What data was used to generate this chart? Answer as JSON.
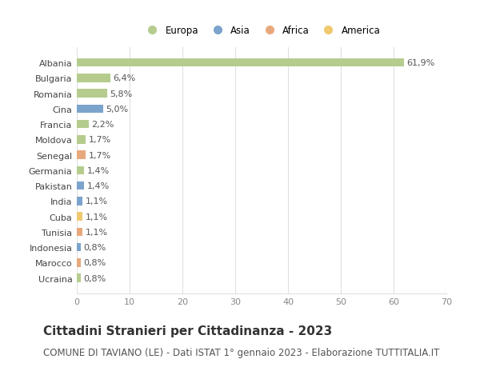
{
  "categories": [
    "Albania",
    "Bulgaria",
    "Romania",
    "Cina",
    "Francia",
    "Moldova",
    "Senegal",
    "Germania",
    "Pakistan",
    "India",
    "Cuba",
    "Tunisia",
    "Indonesia",
    "Marocco",
    "Ucraina"
  ],
  "values": [
    61.9,
    6.4,
    5.8,
    5.0,
    2.2,
    1.7,
    1.7,
    1.4,
    1.4,
    1.1,
    1.1,
    1.1,
    0.8,
    0.8,
    0.8
  ],
  "labels": [
    "61,9%",
    "6,4%",
    "5,8%",
    "5,0%",
    "2,2%",
    "1,7%",
    "1,7%",
    "1,4%",
    "1,4%",
    "1,1%",
    "1,1%",
    "1,1%",
    "0,8%",
    "0,8%",
    "0,8%"
  ],
  "continents": [
    "Europa",
    "Europa",
    "Europa",
    "Asia",
    "Europa",
    "Europa",
    "Africa",
    "Europa",
    "Asia",
    "Asia",
    "America",
    "Africa",
    "Asia",
    "Africa",
    "Europa"
  ],
  "continent_colors": {
    "Europa": "#b5cc8e",
    "Asia": "#7ba3cc",
    "Africa": "#e8a87c",
    "America": "#f0c96e"
  },
  "legend_order": [
    "Europa",
    "Asia",
    "Africa",
    "America"
  ],
  "xlim": [
    0,
    70
  ],
  "xticks": [
    0,
    10,
    20,
    30,
    40,
    50,
    60,
    70
  ],
  "title": "Cittadini Stranieri per Cittadinanza - 2023",
  "subtitle": "COMUNE DI TAVIANO (LE) - Dati ISTAT 1° gennaio 2023 - Elaborazione TUTTITALIA.IT",
  "background_color": "#ffffff",
  "plot_bg_color": "#ffffff",
  "grid_color": "#e0e0e0",
  "bar_height": 0.55,
  "title_fontsize": 11,
  "subtitle_fontsize": 8.5,
  "label_fontsize": 8,
  "tick_fontsize": 8,
  "ytick_fontsize": 8
}
